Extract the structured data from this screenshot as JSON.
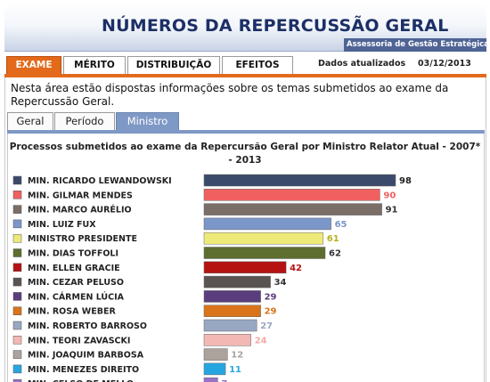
{
  "header": {
    "title": "NÚMEROS DA REPERCUSSÃO GERAL",
    "subtitle": "Assessoria de Gestão Estratégica"
  },
  "tabs": [
    {
      "label": "EXAME",
      "active": true
    },
    {
      "label": "MÉRITO",
      "active": false
    },
    {
      "label": "DISTRIBUIÇÃO",
      "active": false
    },
    {
      "label": "EFEITOS",
      "active": false
    }
  ],
  "status": {
    "updated_label": "Dados atualizados",
    "updated_date": "03/12/2013"
  },
  "intro_text": "Nesta área estão dispostas informações sobre os temas submetidos ao exame da Repercussão Geral.",
  "subtabs": [
    {
      "label": "Geral",
      "active": false
    },
    {
      "label": "Período",
      "active": false
    },
    {
      "label": "Ministro",
      "active": true
    }
  ],
  "chart_data": {
    "type": "bar",
    "orientation": "horizontal",
    "title": "Processos submetidos ao exame da Repercursão Geral por Ministro Relator Atual - 2007* - 2013",
    "xlabel": "",
    "ylabel": "",
    "xlim": [
      0,
      98
    ],
    "grid": false,
    "legend": "left",
    "categories": [
      "MIN. RICARDO LEWANDOWSKI",
      "MIN. GILMAR MENDES",
      "MIN. MARCO AURÉLIO",
      "MIN. LUIZ FUX",
      "MINISTRO PRESIDENTE",
      "MIN. DIAS TOFFOLI",
      "MIN. ELLEN GRACIE",
      "MIN. CEZAR PELUSO",
      "MIN. CÁRMEN LÚCIA",
      "MIN. ROSA WEBER",
      "MIN. ROBERTO BARROSO",
      "MIN. TEORI ZAVASCKI",
      "MIN. JOAQUIM BARBOSA",
      "MIN. MENEZES DIREITO",
      "MIN. CELSO DE MELLO"
    ],
    "values": [
      98,
      90,
      91,
      65,
      61,
      62,
      42,
      34,
      29,
      29,
      27,
      24,
      12,
      11,
      7
    ],
    "colors": [
      "#3b4a6b",
      "#f06060",
      "#7a6e66",
      "#7b96c8",
      "#eeea7a",
      "#5e6e2e",
      "#b51212",
      "#595451",
      "#5a3d7c",
      "#d9741a",
      "#98a7c2",
      "#f3b8b4",
      "#aba39c",
      "#26a6e0",
      "#9a71c9"
    ],
    "label_colors": [
      "#222222",
      "#f06060",
      "#333333",
      "#7b96c8",
      "#b8b020",
      "#333333",
      "#b51212",
      "#333333",
      "#5a3d7c",
      "#d9741a",
      "#98a7c2",
      "#f0aaa6",
      "#aba39c",
      "#26a6e0",
      "#9a71c9"
    ]
  }
}
